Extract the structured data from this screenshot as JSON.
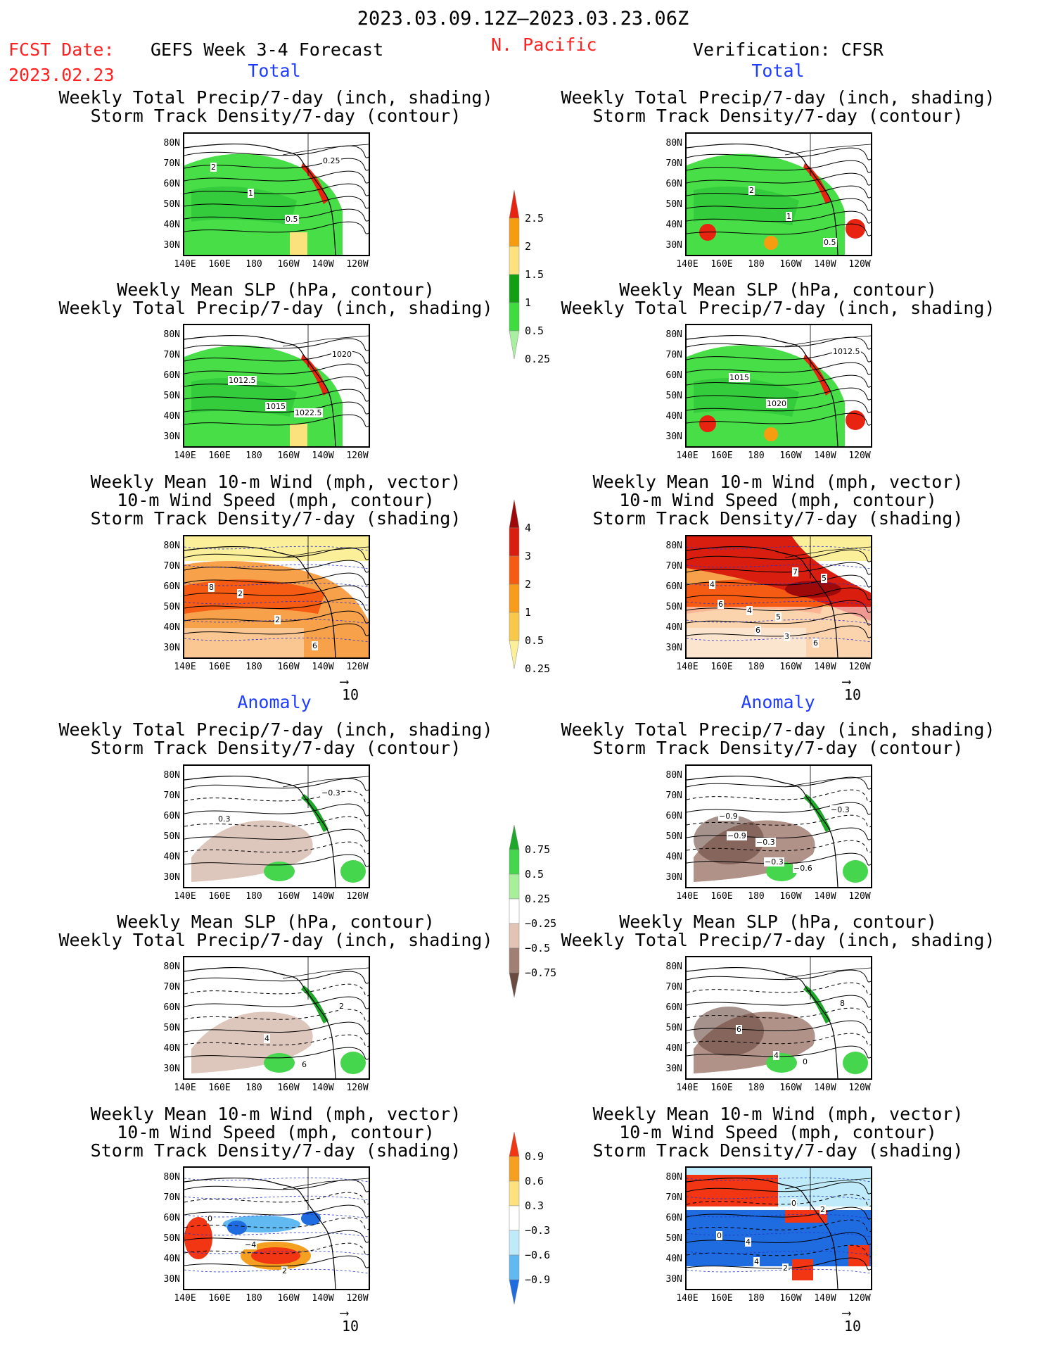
{
  "header": {
    "period": "2023.03.09.12Z–2023.03.23.06Z",
    "fcst_date_label": "FCST Date:",
    "fcst_date": "2023.02.23",
    "model": "GEFS Week 3-4 Forecast",
    "region": "N. Pacific",
    "verification": "Verification: CFSR"
  },
  "sections": {
    "total": "Total",
    "anomaly": "Anomaly"
  },
  "panel_titles": {
    "precip_track": [
      "Weekly Total Precip/7-day (inch, shading)",
      "Storm Track Density/7-day (contour)"
    ],
    "slp_precip": [
      "Weekly Mean SLP (hPa, contour)",
      "Weekly Total Precip/7-day (inch, shading)"
    ],
    "wind_track": [
      "Weekly Mean 10-m Wind (mph, vector)",
      "10-m Wind Speed (mph, contour)",
      "Storm Track Density/7-day (shading)"
    ]
  },
  "axes": {
    "lat_labels": [
      "80N",
      "70N",
      "60N",
      "50N",
      "40N",
      "30N"
    ],
    "lon_labels": [
      "140E",
      "160E",
      "180",
      "160W",
      "140W",
      "120W"
    ]
  },
  "vector_ref": "10",
  "colorbars": {
    "precip_total": {
      "labels": [
        "2.5",
        "2",
        "1.5",
        "1",
        "0.5",
        "0.25"
      ],
      "colors": [
        "#e8230f",
        "#f59d0f",
        "#fbe27d",
        "#12a012",
        "#3edc3e",
        "#a8f0a0"
      ]
    },
    "track_total": {
      "labels": [
        "4",
        "3",
        "2",
        "1",
        "0.5",
        "0.25"
      ],
      "colors": [
        "#9e0a0a",
        "#d91e0f",
        "#f55b12",
        "#f79c1b",
        "#f8c84a",
        "#fcef9a"
      ]
    },
    "precip_anom": {
      "labels": [
        "0.75",
        "0.5",
        "0.25",
        "−0.25",
        "−0.5",
        "−0.75"
      ],
      "colors": [
        "#1da82a",
        "#45d64d",
        "#a8ef9b",
        "#ffffff",
        "#e2c3b4",
        "#a27f73",
        "#6b4a3f"
      ]
    },
    "track_anom": {
      "labels": [
        "0.9",
        "0.6",
        "0.3",
        "−0.3",
        "−0.6",
        "−0.9"
      ],
      "colors": [
        "#f23513",
        "#f5a021",
        "#fbe27d",
        "#ffffff",
        "#bfeaf9",
        "#61b9f1",
        "#1f6ce0"
      ]
    }
  },
  "panels": [
    {
      "id": "fc-total-precip",
      "contours": [
        "2",
        "1",
        "0.5",
        "0.25"
      ],
      "fill": "#3edc3e"
    },
    {
      "id": "ob-total-precip",
      "contours": [
        "2",
        "1",
        "0.5"
      ],
      "fill": "#3edc3e"
    },
    {
      "id": "fc-total-slp",
      "contours": [
        "1022.5",
        "1020",
        "1012.5",
        "1015"
      ],
      "fill": "#3edc3e"
    },
    {
      "id": "ob-total-slp",
      "contours": [
        "1012.5",
        "1015",
        "1020"
      ],
      "fill": "#3edc3e"
    },
    {
      "id": "fc-total-wind",
      "contours": [
        "2",
        "2",
        "6",
        "8"
      ],
      "fill": "#f58a1d"
    },
    {
      "id": "ob-total-wind",
      "contours": [
        "5",
        "6",
        "4",
        "4",
        "3",
        "5",
        "6",
        "6",
        "7"
      ],
      "fill": "#f58a1d"
    },
    {
      "id": "fc-anom-precip",
      "contours": [
        "−0.3",
        "0.3"
      ],
      "fill": "#d7bcb0"
    },
    {
      "id": "ob-anom-precip",
      "contours": [
        "−0.9",
        "−0.3",
        "−0.6",
        "−0.3",
        "−0.9",
        "−0.3"
      ],
      "fill": "#a27f73"
    },
    {
      "id": "fc-anom-slp",
      "contours": [
        "4",
        "6",
        "2"
      ],
      "fill": "#d7bcb0"
    },
    {
      "id": "ob-anom-slp",
      "contours": [
        "0",
        "8",
        "6",
        "4"
      ],
      "fill": "#a27f73"
    },
    {
      "id": "fc-anom-wind",
      "contours": [
        "0",
        "−4",
        "2"
      ],
      "fill": "#61b9f1"
    },
    {
      "id": "ob-anom-wind",
      "contours": [
        "4",
        "2",
        "2",
        "0",
        "4",
        "0"
      ],
      "fill": "#1f6ce0"
    }
  ]
}
